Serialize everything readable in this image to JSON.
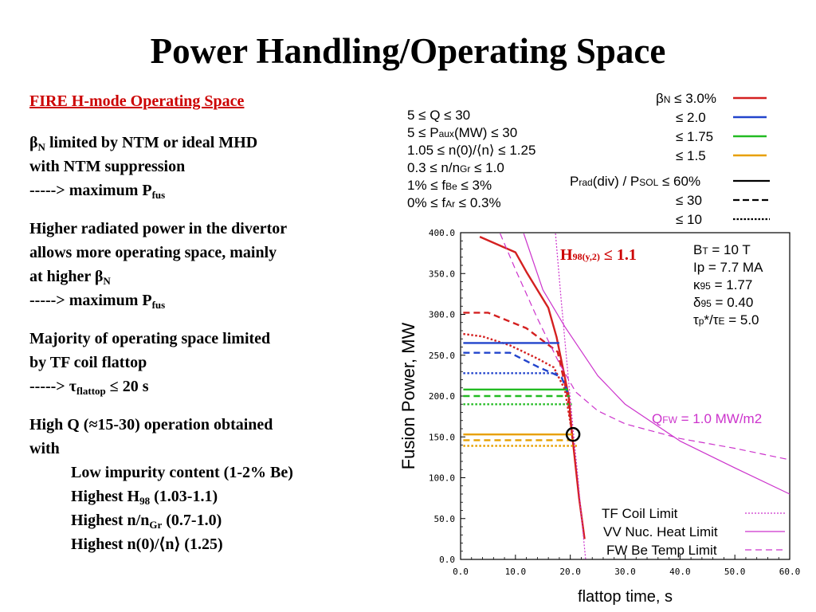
{
  "title": "Power Handling/Operating Space",
  "left_panel": {
    "subtitle": "FIRE H-mode Operating Space",
    "p1": {
      "beta": "β",
      "beta_sub": "N",
      "line1_rest": " limited by NTM or ideal MHD",
      "line2": "with NTM suppression",
      "line3_prefix": "----->  maximum P",
      "line3_sub": "fus"
    },
    "p2": {
      "line1": "Higher radiated power in the divertor",
      "line2": "allows more operating space, mainly",
      "line3_prefix": "at higher β",
      "line3_sub": "N",
      "line4_prefix": "----->  maximum P",
      "line4_sub": "fus"
    },
    "p3": {
      "line1": "Majority of operating space limited",
      "line2": "by TF coil flattop",
      "line3_prefix": "-----> τ",
      "line3_sub": "flattop",
      "line3_suffix": " ≤ 20 s"
    },
    "p4": {
      "line1": "High Q (≈15-30) operation obtained",
      "line2": "with",
      "item1": "Low impurity content (1-2% Be)",
      "item2_prefix": "Highest H",
      "item2_sub": "98",
      "item2_suffix": " (1.03-1.1)",
      "item3_prefix": "Highest n/n",
      "item3_sub": "Gr",
      "item3_suffix": " (0.7-1.0)",
      "item4": "Highest n(0)/⟨n⟩ (1.25)"
    }
  },
  "chart_data": {
    "type": "line",
    "xlabel": "flattop time, s",
    "ylabel": "Fusion Power, MW",
    "xlim": [
      0,
      60
    ],
    "ylim": [
      0,
      400
    ],
    "x_ticks": [
      "0.0",
      "10.0",
      "20.0",
      "30.0",
      "40.0",
      "50.0",
      "60.0"
    ],
    "y_ticks": [
      "0.0",
      "50.0",
      "100.0",
      "150.0",
      "200.0",
      "250.0",
      "300.0",
      "350.0",
      "400.0"
    ],
    "colors": {
      "beta_3_0": "#d42020",
      "beta_2_0": "#2244cc",
      "beta_1_75": "#22bb22",
      "beta_1_5": "#e8a000",
      "limits": "#cc33cc",
      "operating_point": "#000000"
    },
    "parameter_ranges": [
      "5 ≤ Q ≤ 30",
      "5 ≤ Paux(MW) ≤ 30",
      "1.05 ≤ n(0)/⟨n⟩ ≤ 1.25",
      "0.3 ≤ n/nGr ≤ 1.0",
      "1% ≤ fBe ≤ 3%",
      "0% ≤ fAr ≤ 0.3%"
    ],
    "legend_beta": [
      "βN ≤ 3.0%",
      "≤ 2.0",
      "≤ 1.75",
      "≤ 1.5"
    ],
    "legend_prad": [
      "Prad(div) / PSOL ≤ 60%",
      "≤ 30",
      "≤ 10"
    ],
    "machine_params": [
      "BT = 10 T",
      "Ip = 7.7 MA",
      "κ95 = 1.77",
      "δ95 = 0.40",
      "τp*/τE = 5.0"
    ],
    "h98_label": "H98(y,2) ≤ 1.1",
    "qfw_label": "QFW = 1.0 MW/m2",
    "limit_legend": [
      "TF Coil Limit",
      "VV Nuc. Heat Limit",
      "FW Be Temp Limit"
    ],
    "series": [
      {
        "name": "βN ≤ 3.0%, Prad(div)/PSOL ≤ 60%",
        "color": "#d42020",
        "dash": "solid",
        "points": [
          [
            3.5,
            395
          ],
          [
            10,
            376
          ],
          [
            12,
            352
          ],
          [
            16,
            308
          ],
          [
            17.5,
            272
          ],
          [
            19.7,
            200
          ],
          [
            20.3,
            155
          ],
          [
            21.6,
            75
          ],
          [
            22.6,
            25
          ]
        ]
      },
      {
        "name": "βN ≤ 3.0%, ≤ 30",
        "color": "#d42020",
        "dash": "dashed",
        "points": [
          [
            0.5,
            302
          ],
          [
            5,
            302
          ],
          [
            12,
            283
          ],
          [
            17.7,
            254
          ],
          [
            19.5,
            200
          ],
          [
            20.4,
            148
          ]
        ]
      },
      {
        "name": "βN ≤ 3.0%, ≤ 10",
        "color": "#d42020",
        "dash": "dotted",
        "points": [
          [
            0.5,
            276
          ],
          [
            4,
            273
          ],
          [
            9,
            262
          ],
          [
            14,
            246
          ],
          [
            17,
            235
          ],
          [
            19,
            208
          ],
          [
            20.2,
            160
          ]
        ]
      },
      {
        "name": "βN ≤ 2.0, ≤ 60%",
        "color": "#2244cc",
        "dash": "solid",
        "points": [
          [
            0.5,
            265
          ],
          [
            18,
            265
          ]
        ]
      },
      {
        "name": "βN ≤ 2.0, ≤ 30",
        "color": "#2244cc",
        "dash": "dashed",
        "points": [
          [
            0.5,
            253
          ],
          [
            9,
            253
          ],
          [
            14,
            236
          ],
          [
            18.4,
            223
          ],
          [
            19.5,
            205
          ]
        ]
      },
      {
        "name": "βN ≤ 2.0, ≤ 10",
        "color": "#2244cc",
        "dash": "dotted",
        "points": [
          [
            0.5,
            228
          ],
          [
            17.5,
            228
          ]
        ]
      },
      {
        "name": "βN ≤ 1.75, ≤ 60%",
        "color": "#22bb22",
        "dash": "solid",
        "points": [
          [
            0.5,
            208
          ],
          [
            19.6,
            208
          ]
        ]
      },
      {
        "name": "βN ≤ 1.75, ≤ 30",
        "color": "#22bb22",
        "dash": "dashed",
        "points": [
          [
            0.5,
            200
          ],
          [
            19.9,
            200
          ]
        ]
      },
      {
        "name": "βN ≤ 1.75, ≤ 10",
        "color": "#22bb22",
        "dash": "dotted",
        "points": [
          [
            0.5,
            190
          ],
          [
            20.3,
            190
          ]
        ]
      },
      {
        "name": "βN ≤ 1.5, ≤ 60%",
        "color": "#e8a000",
        "dash": "solid",
        "points": [
          [
            0.5,
            153
          ],
          [
            20.4,
            153
          ]
        ]
      },
      {
        "name": "βN ≤ 1.5, ≤ 30",
        "color": "#e8a000",
        "dash": "dashed",
        "points": [
          [
            0.5,
            146
          ],
          [
            20.8,
            146
          ]
        ]
      },
      {
        "name": "βN ≤ 1.5, ≤ 10",
        "color": "#e8a000",
        "dash": "dotted",
        "points": [
          [
            0.5,
            139
          ],
          [
            21.2,
            139
          ]
        ]
      },
      {
        "name": "TF Coil Limit",
        "color": "#cc33cc",
        "dash": "dotted",
        "points": [
          [
            17.3,
            399
          ],
          [
            18.3,
            320
          ],
          [
            19.4,
            240
          ],
          [
            20.5,
            160
          ],
          [
            21.4,
            100
          ],
          [
            22,
            55
          ],
          [
            22.8,
            0
          ]
        ]
      },
      {
        "name": "VV Nuc. Heat Limit",
        "color": "#cc33cc",
        "dash": "solid",
        "points": [
          [
            11.5,
            399
          ],
          [
            15,
            330
          ],
          [
            19,
            285
          ],
          [
            25,
            225
          ],
          [
            30,
            190
          ],
          [
            40,
            145
          ],
          [
            50,
            112
          ],
          [
            60,
            80
          ]
        ]
      },
      {
        "name": "FW Be Temp Limit",
        "color": "#cc33cc",
        "dash": "dashed",
        "points": [
          [
            7.2,
            399
          ],
          [
            10,
            355
          ],
          [
            14,
            295
          ],
          [
            18,
            240
          ],
          [
            21,
            205
          ],
          [
            25,
            182
          ],
          [
            30,
            166
          ],
          [
            40,
            148
          ],
          [
            50,
            136
          ],
          [
            60,
            122
          ]
        ]
      }
    ],
    "operating_point": {
      "x": 20.5,
      "y": 153
    }
  }
}
